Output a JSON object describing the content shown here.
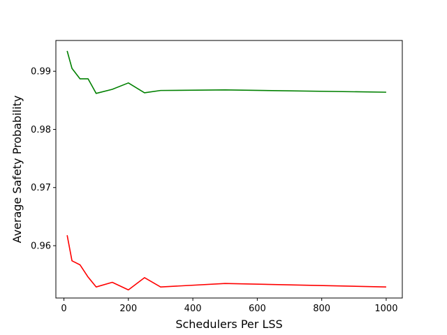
{
  "chart_data": {
    "type": "line",
    "title": "",
    "xlabel": "Schedulers Per LSS",
    "ylabel": "Average Safety Probability",
    "xlim": [
      -25,
      1050
    ],
    "ylim": [
      0.951,
      0.9953
    ],
    "xticks": [
      0,
      200,
      400,
      600,
      800,
      1000
    ],
    "yticks": [
      0.96,
      0.97,
      0.98,
      0.99
    ],
    "xtick_labels": [
      "0",
      "200",
      "400",
      "600",
      "800",
      "1000"
    ],
    "ytick_labels": [
      "0.96",
      "0.97",
      "0.98",
      "0.99"
    ],
    "grid": false,
    "legend": "none",
    "series": [
      {
        "color": "#008000",
        "x": [
          10,
          25,
          50,
          75,
          100,
          150,
          200,
          250,
          300,
          500,
          1000
        ],
        "y": [
          0.9935,
          0.9905,
          0.9887,
          0.9887,
          0.9862,
          0.9869,
          0.988,
          0.9863,
          0.9867,
          0.9868,
          0.9864
        ]
      },
      {
        "color": "#ff0000",
        "x": [
          10,
          25,
          50,
          75,
          100,
          150,
          200,
          250,
          300,
          500,
          1000
        ],
        "y": [
          0.9618,
          0.9574,
          0.9567,
          0.9546,
          0.9529,
          0.9537,
          0.9524,
          0.9545,
          0.9529,
          0.9535,
          0.9529
        ]
      }
    ]
  }
}
